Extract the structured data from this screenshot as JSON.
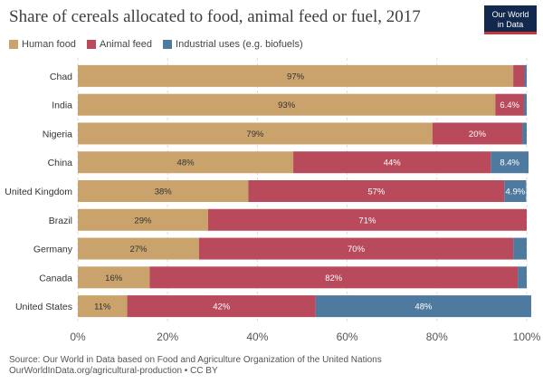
{
  "title": "Share of cereals allocated to food, animal feed or fuel, 2017",
  "logo": {
    "line1": "Our World",
    "line2": "in Data"
  },
  "source_line1": "Source: Our World in Data based on Food and Agriculture Organization of the United Nations",
  "source_line2": "OurWorldInData.org/agricultural-production • CC BY",
  "colors": {
    "human_food": "#c9a36b",
    "animal_feed": "#b84a5c",
    "industrial": "#4f7aa0"
  },
  "chart_data": {
    "type": "bar",
    "orientation": "horizontal",
    "stacked": true,
    "legend_position": "top-left",
    "categories": [
      "Chad",
      "India",
      "Nigeria",
      "China",
      "United Kingdom",
      "Brazil",
      "Germany",
      "Canada",
      "United States"
    ],
    "series": [
      {
        "name": "Human food",
        "values": [
          97,
          93,
          79,
          48,
          38,
          29,
          27,
          16,
          11
        ],
        "labels": [
          "97%",
          "93%",
          "79%",
          "48%",
          "38%",
          "29%",
          "27%",
          "16%",
          "11%"
        ]
      },
      {
        "name": "Animal feed",
        "values": [
          2.5,
          6.4,
          20,
          44,
          57,
          71,
          70,
          82,
          42
        ],
        "labels": [
          "",
          "6.4%",
          "20%",
          "44%",
          "57%",
          "71%",
          "70%",
          "82%",
          "42%"
        ]
      },
      {
        "name": "Industrial uses (e.g. biofuels)",
        "values": [
          0.5,
          0.6,
          1,
          8.4,
          4.9,
          0,
          3,
          2,
          48
        ],
        "labels": [
          "",
          "",
          "",
          "8.4%",
          "4.9%",
          "",
          "",
          "",
          "48%"
        ]
      }
    ],
    "xlim": [
      0,
      100
    ],
    "x_ticks": [
      "0%",
      "20%",
      "40%",
      "60%",
      "80%",
      "100%"
    ],
    "grid": true
  }
}
